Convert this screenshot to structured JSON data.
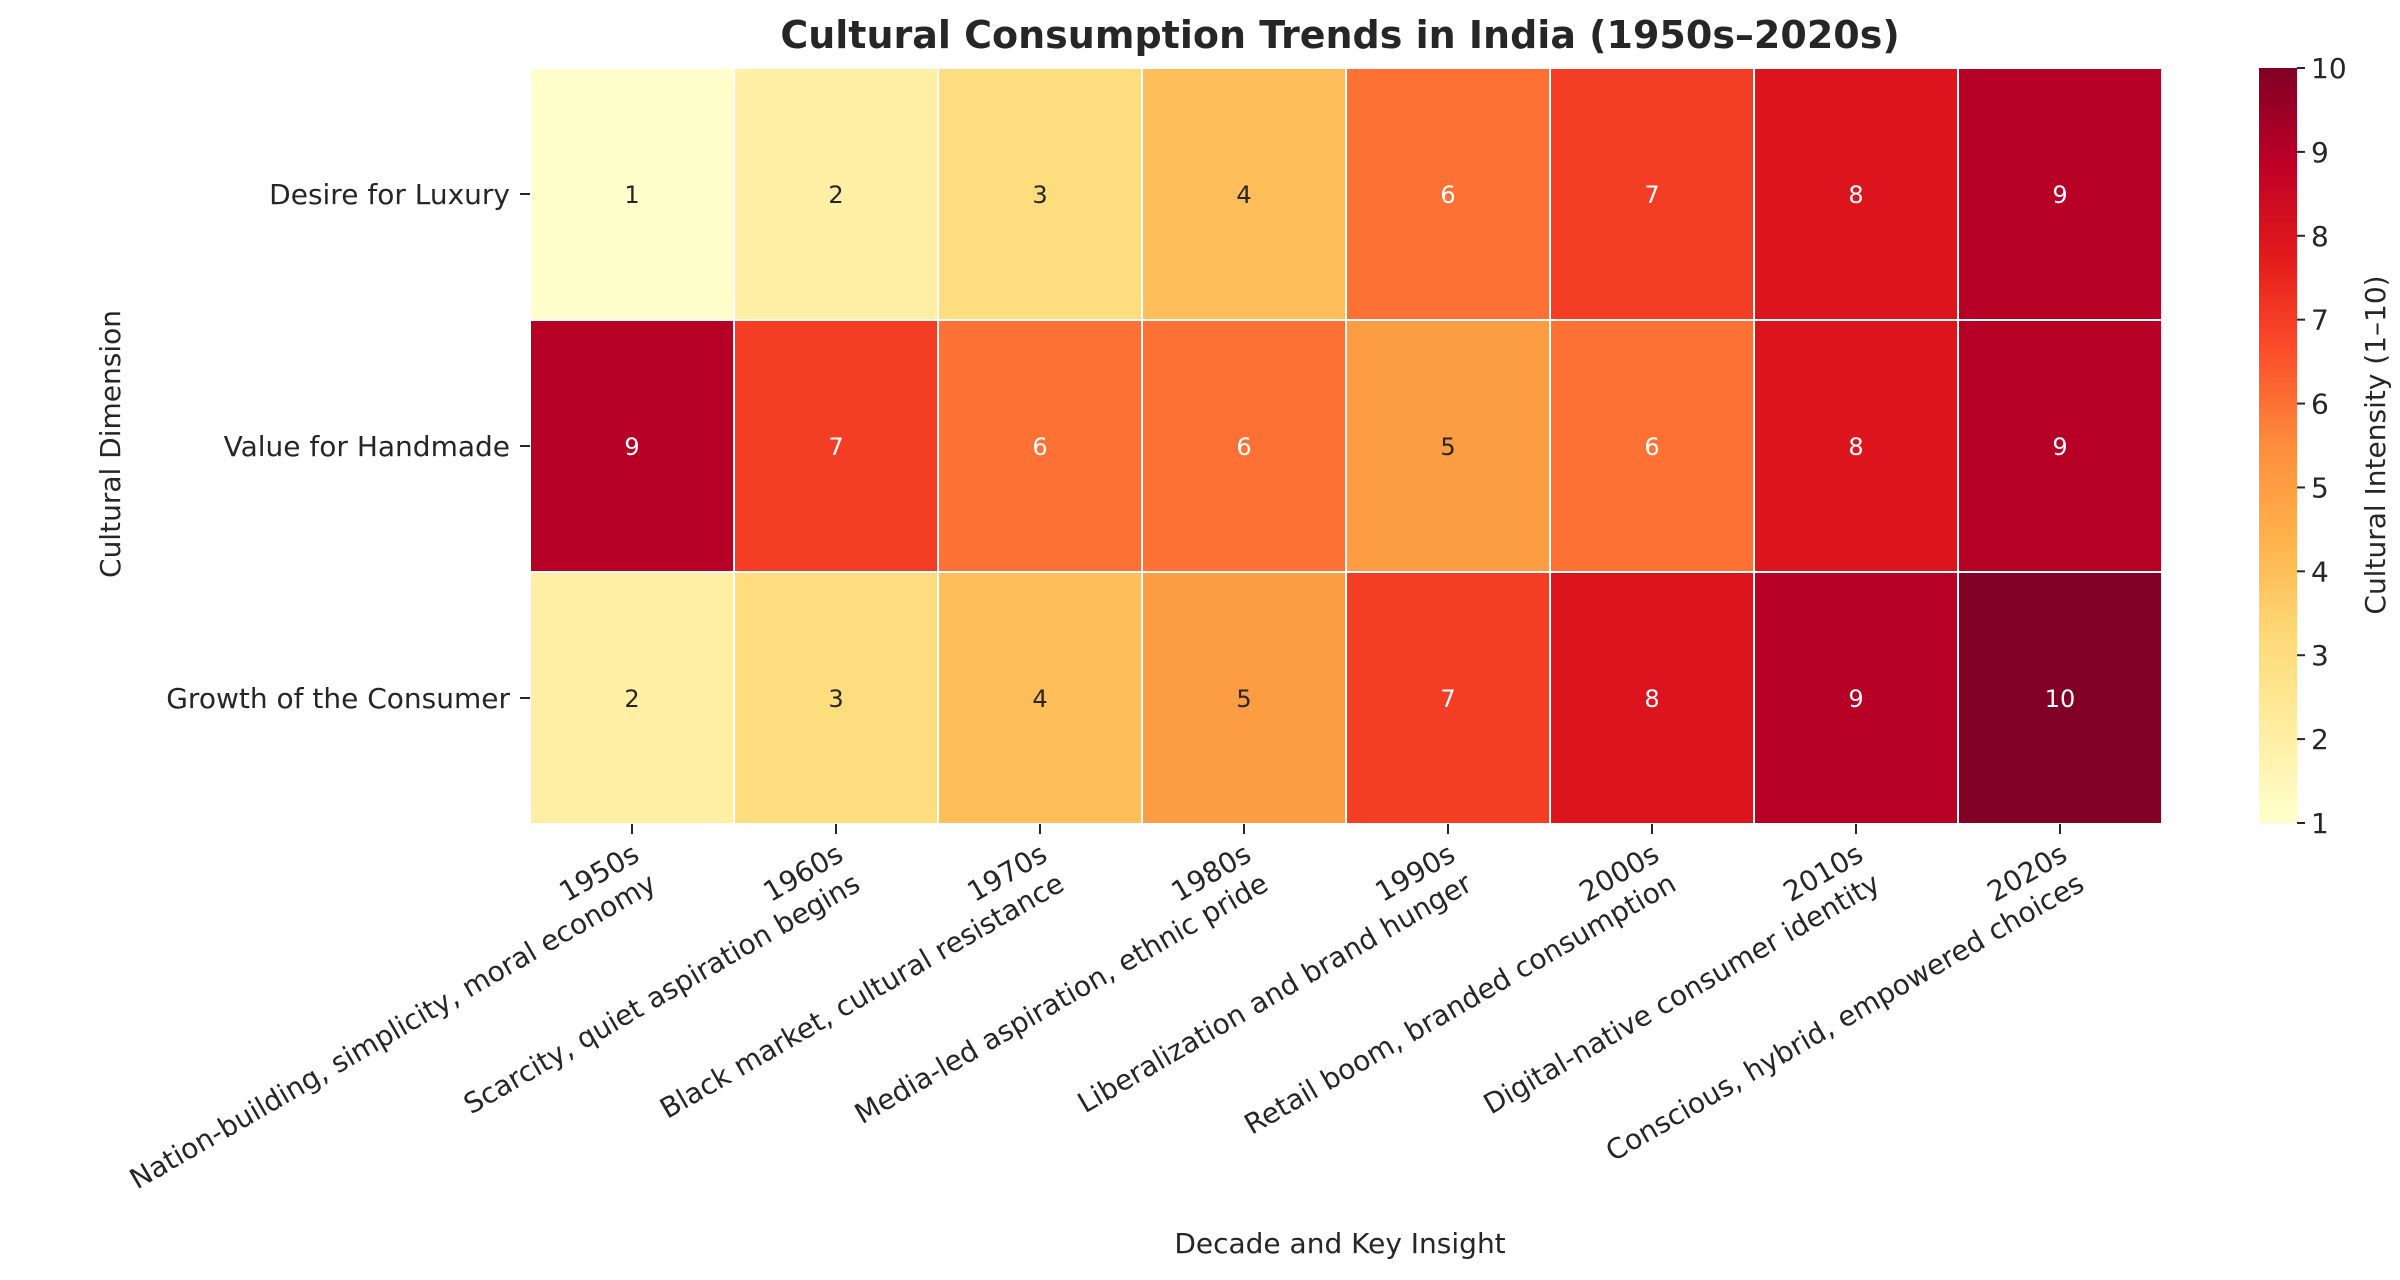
{
  "chart_data": {
    "type": "heatmap",
    "title": "Cultural Consumption Trends in India (1950s–2020s)",
    "xlabel": "Decade and Key Insight",
    "ylabel": "Cultural Dimension",
    "colorbar_label": "Cultural Intensity (1–10)",
    "colorbar_ticks": [
      "1",
      "2",
      "3",
      "4",
      "5",
      "6",
      "7",
      "8",
      "9",
      "10"
    ],
    "value_range": [
      1,
      10
    ],
    "colormap": "YlOrRd",
    "columns": [
      {
        "decade": "1950s",
        "insight": "Nation-building, simplicity, moral economy"
      },
      {
        "decade": "1960s",
        "insight": "Scarcity, quiet aspiration begins"
      },
      {
        "decade": "1970s",
        "insight": "Black market, cultural resistance"
      },
      {
        "decade": "1980s",
        "insight": "Media-led aspiration, ethnic pride"
      },
      {
        "decade": "1990s",
        "insight": "Liberalization and brand hunger"
      },
      {
        "decade": "2000s",
        "insight": "Retail boom, branded consumption"
      },
      {
        "decade": "2010s",
        "insight": "Digital-native consumer identity"
      },
      {
        "decade": "2020s",
        "insight": "Conscious, hybrid, empowered choices"
      }
    ],
    "rows": [
      "Desire for Luxury",
      "Value for Handmade",
      "Growth of the Consumer"
    ],
    "values": [
      [
        1,
        2,
        3,
        4,
        6,
        7,
        8,
        9
      ],
      [
        9,
        7,
        6,
        6,
        5,
        6,
        8,
        9
      ],
      [
        2,
        3,
        4,
        5,
        7,
        8,
        9,
        10
      ]
    ],
    "grid": false,
    "legend": "colorbar-right"
  }
}
